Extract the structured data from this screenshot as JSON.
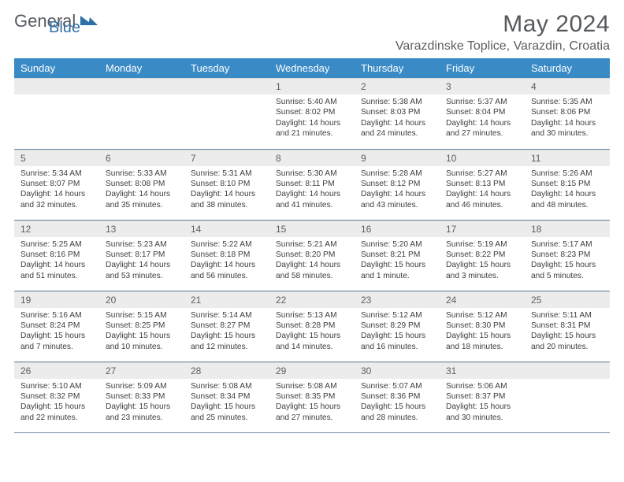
{
  "brand": {
    "general": "General",
    "blue": "Blue"
  },
  "header": {
    "title": "May 2024",
    "location": "Varazdinske Toplice, Varazdin, Croatia"
  },
  "colors": {
    "header_bg": "#3a8ac6",
    "header_fg": "#ffffff",
    "daynum_bg": "#ececec",
    "divider": "#6d8aa8",
    "body_text": "#3b3e41",
    "title_fg": "#56595c",
    "brand_gray": "#555b62",
    "brand_blue": "#2f6fa7"
  },
  "fonts": {
    "title_size_pt": 22,
    "location_size_pt": 12,
    "header_size_pt": 10,
    "body_size_pt": 7.5
  },
  "weekdays": [
    "Sunday",
    "Monday",
    "Tuesday",
    "Wednesday",
    "Thursday",
    "Friday",
    "Saturday"
  ],
  "rows": [
    [
      null,
      null,
      null,
      {
        "n": "1",
        "sr": "5:40 AM",
        "ss": "8:02 PM",
        "dl": "14 hours and 21 minutes."
      },
      {
        "n": "2",
        "sr": "5:38 AM",
        "ss": "8:03 PM",
        "dl": "14 hours and 24 minutes."
      },
      {
        "n": "3",
        "sr": "5:37 AM",
        "ss": "8:04 PM",
        "dl": "14 hours and 27 minutes."
      },
      {
        "n": "4",
        "sr": "5:35 AM",
        "ss": "8:06 PM",
        "dl": "14 hours and 30 minutes."
      }
    ],
    [
      {
        "n": "5",
        "sr": "5:34 AM",
        "ss": "8:07 PM",
        "dl": "14 hours and 32 minutes."
      },
      {
        "n": "6",
        "sr": "5:33 AM",
        "ss": "8:08 PM",
        "dl": "14 hours and 35 minutes."
      },
      {
        "n": "7",
        "sr": "5:31 AM",
        "ss": "8:10 PM",
        "dl": "14 hours and 38 minutes."
      },
      {
        "n": "8",
        "sr": "5:30 AM",
        "ss": "8:11 PM",
        "dl": "14 hours and 41 minutes."
      },
      {
        "n": "9",
        "sr": "5:28 AM",
        "ss": "8:12 PM",
        "dl": "14 hours and 43 minutes."
      },
      {
        "n": "10",
        "sr": "5:27 AM",
        "ss": "8:13 PM",
        "dl": "14 hours and 46 minutes."
      },
      {
        "n": "11",
        "sr": "5:26 AM",
        "ss": "8:15 PM",
        "dl": "14 hours and 48 minutes."
      }
    ],
    [
      {
        "n": "12",
        "sr": "5:25 AM",
        "ss": "8:16 PM",
        "dl": "14 hours and 51 minutes."
      },
      {
        "n": "13",
        "sr": "5:23 AM",
        "ss": "8:17 PM",
        "dl": "14 hours and 53 minutes."
      },
      {
        "n": "14",
        "sr": "5:22 AM",
        "ss": "8:18 PM",
        "dl": "14 hours and 56 minutes."
      },
      {
        "n": "15",
        "sr": "5:21 AM",
        "ss": "8:20 PM",
        "dl": "14 hours and 58 minutes."
      },
      {
        "n": "16",
        "sr": "5:20 AM",
        "ss": "8:21 PM",
        "dl": "15 hours and 1 minute."
      },
      {
        "n": "17",
        "sr": "5:19 AM",
        "ss": "8:22 PM",
        "dl": "15 hours and 3 minutes."
      },
      {
        "n": "18",
        "sr": "5:17 AM",
        "ss": "8:23 PM",
        "dl": "15 hours and 5 minutes."
      }
    ],
    [
      {
        "n": "19",
        "sr": "5:16 AM",
        "ss": "8:24 PM",
        "dl": "15 hours and 7 minutes."
      },
      {
        "n": "20",
        "sr": "5:15 AM",
        "ss": "8:25 PM",
        "dl": "15 hours and 10 minutes."
      },
      {
        "n": "21",
        "sr": "5:14 AM",
        "ss": "8:27 PM",
        "dl": "15 hours and 12 minutes."
      },
      {
        "n": "22",
        "sr": "5:13 AM",
        "ss": "8:28 PM",
        "dl": "15 hours and 14 minutes."
      },
      {
        "n": "23",
        "sr": "5:12 AM",
        "ss": "8:29 PM",
        "dl": "15 hours and 16 minutes."
      },
      {
        "n": "24",
        "sr": "5:12 AM",
        "ss": "8:30 PM",
        "dl": "15 hours and 18 minutes."
      },
      {
        "n": "25",
        "sr": "5:11 AM",
        "ss": "8:31 PM",
        "dl": "15 hours and 20 minutes."
      }
    ],
    [
      {
        "n": "26",
        "sr": "5:10 AM",
        "ss": "8:32 PM",
        "dl": "15 hours and 22 minutes."
      },
      {
        "n": "27",
        "sr": "5:09 AM",
        "ss": "8:33 PM",
        "dl": "15 hours and 23 minutes."
      },
      {
        "n": "28",
        "sr": "5:08 AM",
        "ss": "8:34 PM",
        "dl": "15 hours and 25 minutes."
      },
      {
        "n": "29",
        "sr": "5:08 AM",
        "ss": "8:35 PM",
        "dl": "15 hours and 27 minutes."
      },
      {
        "n": "30",
        "sr": "5:07 AM",
        "ss": "8:36 PM",
        "dl": "15 hours and 28 minutes."
      },
      {
        "n": "31",
        "sr": "5:06 AM",
        "ss": "8:37 PM",
        "dl": "15 hours and 30 minutes."
      },
      null
    ]
  ],
  "labels": {
    "sunrise": "Sunrise: ",
    "sunset": "Sunset: ",
    "daylight": "Daylight: "
  }
}
